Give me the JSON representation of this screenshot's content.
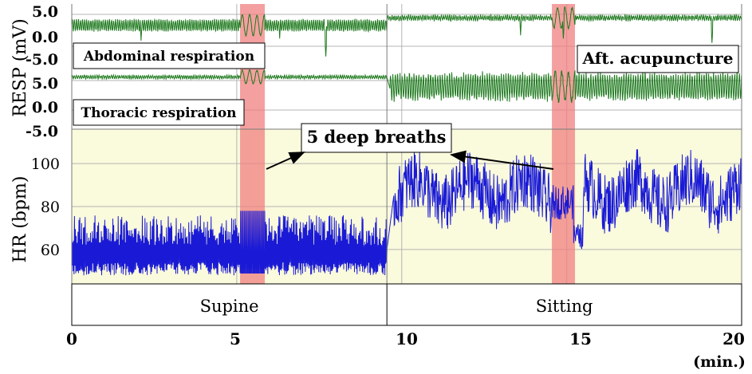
{
  "chart_data": {
    "type": "line",
    "x_axis": {
      "label": "(min.)",
      "range": [
        0,
        20.3
      ],
      "ticks": [
        0,
        5,
        10,
        15,
        20
      ],
      "tick_labels": [
        "0",
        "5",
        "10",
        "15",
        "20"
      ]
    },
    "resp_ylabel": "RESP (mV)",
    "hr_ylabel": "HR (bpm)",
    "abdominal": {
      "name": "Abdominal respiration",
      "ylim": [
        -5.0,
        5.0
      ],
      "tick_labels": [
        "5.0",
        "0.0",
        "-5.0"
      ],
      "tick_values": [
        5.0,
        0.0,
        -5.0
      ]
    },
    "thoracic": {
      "name": "Thoracic respiration",
      "ylim": [
        -5.0,
        5.0
      ],
      "tick_labels": [
        "5.0",
        "0.0",
        "-5.0"
      ],
      "tick_values": [
        5.0,
        0.0,
        -5.0
      ]
    },
    "hr": {
      "ylim": [
        44,
        116
      ],
      "tick_labels": [
        "100",
        "80",
        "60"
      ],
      "tick_values": [
        100,
        80,
        60
      ]
    },
    "deep_breath_windows": [
      [
        5.1,
        5.85
      ],
      [
        14.55,
        15.25
      ]
    ],
    "postures": [
      {
        "label": "Supine",
        "range": [
          0,
          9.55
        ]
      },
      {
        "label": "Sitting",
        "range": [
          9.55,
          20.3
        ]
      }
    ],
    "annotations": {
      "deep_breaths": "5 deep breaths",
      "after_acupuncture": "Aft. acupuncture"
    },
    "colors": {
      "resp": "#1f7a1f",
      "hr": "#1a1ad6",
      "highlight": "#f08080",
      "hr_background": "#fafadc"
    },
    "grid": true
  }
}
